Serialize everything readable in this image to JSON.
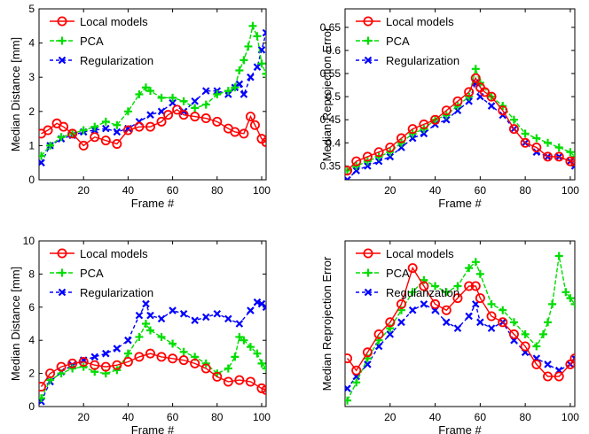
{
  "chart_data": [
    {
      "type": "line",
      "xlabel": "Frame #",
      "ylabel": "Median Distance [mm]",
      "xlim": [
        0,
        102
      ],
      "ylim": [
        0,
        5
      ],
      "xticks": [
        20,
        40,
        60,
        80,
        100
      ],
      "yticks": [
        0,
        1,
        2,
        3,
        4,
        5
      ],
      "legend_position": "top-left",
      "series": [
        {
          "name": "Local models",
          "color": "#ff0000",
          "marker": "o",
          "x": [
            1,
            4,
            8,
            11,
            15,
            20,
            25,
            30,
            35,
            40,
            45,
            50,
            55,
            58,
            62,
            65,
            70,
            75,
            80,
            85,
            88,
            92,
            95,
            97,
            100,
            102
          ],
          "y": [
            1.35,
            1.45,
            1.65,
            1.55,
            1.35,
            1.0,
            1.25,
            1.15,
            1.05,
            1.45,
            1.55,
            1.55,
            1.7,
            1.9,
            2.05,
            1.9,
            1.85,
            1.8,
            1.7,
            1.5,
            1.4,
            1.35,
            1.85,
            1.6,
            1.2,
            1.1
          ]
        },
        {
          "name": "PCA",
          "color": "#00dd00",
          "marker": "+",
          "x": [
            1,
            5,
            10,
            15,
            20,
            25,
            30,
            35,
            40,
            45,
            48,
            50,
            55,
            60,
            65,
            70,
            75,
            80,
            85,
            88,
            90,
            92,
            94,
            96,
            98,
            100,
            102
          ],
          "y": [
            0.7,
            1.0,
            1.25,
            1.35,
            1.45,
            1.55,
            1.7,
            1.6,
            2.0,
            2.5,
            2.7,
            2.6,
            2.4,
            2.4,
            2.3,
            2.1,
            2.2,
            2.5,
            2.6,
            2.7,
            3.2,
            3.5,
            3.9,
            4.5,
            4.2,
            3.4,
            3.1
          ]
        },
        {
          "name": "Regularization",
          "color": "#0000ff",
          "marker": "x",
          "x": [
            1,
            5,
            10,
            15,
            20,
            25,
            30,
            35,
            40,
            45,
            50,
            55,
            60,
            65,
            70,
            75,
            80,
            85,
            88,
            90,
            92,
            95,
            98,
            100,
            102
          ],
          "y": [
            0.5,
            1.0,
            1.2,
            1.3,
            1.4,
            1.45,
            1.5,
            1.4,
            1.5,
            1.7,
            1.9,
            2.0,
            2.25,
            2.0,
            2.3,
            2.6,
            2.6,
            2.5,
            2.7,
            2.8,
            2.5,
            3.0,
            3.3,
            3.8,
            4.3
          ]
        }
      ]
    },
    {
      "type": "line",
      "xlabel": "Frame #",
      "ylabel": "Median Reprojection Error",
      "xlim": [
        0,
        102
      ],
      "ylim": [
        0.32,
        0.69
      ],
      "xticks": [
        20,
        40,
        60,
        80,
        100
      ],
      "yticks": [
        0.35,
        0.4,
        0.45,
        0.5,
        0.55,
        0.6,
        0.65
      ],
      "legend_position": "top-left",
      "series": [
        {
          "name": "Local models",
          "color": "#ff0000",
          "marker": "o",
          "x": [
            1,
            5,
            10,
            15,
            20,
            25,
            30,
            35,
            40,
            45,
            50,
            55,
            58,
            60,
            62,
            65,
            70,
            75,
            80,
            85,
            90,
            95,
            100,
            102
          ],
          "y": [
            0.34,
            0.36,
            0.37,
            0.38,
            0.39,
            0.41,
            0.43,
            0.44,
            0.45,
            0.47,
            0.49,
            0.51,
            0.54,
            0.52,
            0.51,
            0.5,
            0.47,
            0.43,
            0.4,
            0.39,
            0.37,
            0.37,
            0.36,
            0.36
          ]
        },
        {
          "name": "PCA",
          "color": "#00dd00",
          "marker": "+",
          "x": [
            1,
            5,
            10,
            15,
            20,
            25,
            30,
            35,
            40,
            45,
            50,
            55,
            58,
            60,
            65,
            70,
            75,
            80,
            85,
            90,
            95,
            100,
            102
          ],
          "y": [
            0.34,
            0.35,
            0.36,
            0.37,
            0.38,
            0.4,
            0.42,
            0.43,
            0.45,
            0.46,
            0.48,
            0.5,
            0.56,
            0.53,
            0.5,
            0.48,
            0.45,
            0.42,
            0.41,
            0.4,
            0.39,
            0.38,
            0.37
          ]
        },
        {
          "name": "Regularization",
          "color": "#0000ff",
          "marker": "x",
          "x": [
            1,
            5,
            10,
            15,
            20,
            25,
            30,
            35,
            40,
            45,
            50,
            55,
            58,
            60,
            65,
            70,
            75,
            80,
            85,
            90,
            95,
            100,
            102
          ],
          "y": [
            0.32,
            0.34,
            0.35,
            0.36,
            0.37,
            0.39,
            0.41,
            0.42,
            0.44,
            0.45,
            0.47,
            0.49,
            0.53,
            0.5,
            0.48,
            0.46,
            0.43,
            0.4,
            0.38,
            0.37,
            0.37,
            0.36,
            0.35
          ]
        }
      ]
    },
    {
      "type": "line",
      "xlabel": "Frame #",
      "ylabel": "Median Distance [mm]",
      "xlim": [
        0,
        102
      ],
      "ylim": [
        0,
        10
      ],
      "xticks": [
        20,
        40,
        60,
        80,
        100
      ],
      "yticks": [
        0,
        2,
        4,
        6,
        8,
        10
      ],
      "legend_position": "top-left",
      "series": [
        {
          "name": "Local models",
          "color": "#ff0000",
          "marker": "o",
          "x": [
            1,
            5,
            10,
            15,
            20,
            25,
            30,
            35,
            40,
            45,
            50,
            55,
            60,
            65,
            70,
            75,
            80,
            85,
            90,
            95,
            100,
            102
          ],
          "y": [
            1.2,
            2.0,
            2.4,
            2.6,
            2.7,
            2.5,
            2.4,
            2.5,
            2.7,
            3.0,
            3.2,
            3.0,
            2.9,
            2.8,
            2.6,
            2.3,
            1.8,
            1.5,
            1.6,
            1.5,
            1.1,
            1.0
          ]
        },
        {
          "name": "PCA",
          "color": "#00dd00",
          "marker": "+",
          "x": [
            1,
            5,
            10,
            15,
            20,
            25,
            30,
            35,
            40,
            45,
            48,
            50,
            55,
            60,
            65,
            70,
            75,
            80,
            85,
            88,
            90,
            92,
            95,
            98,
            100,
            102
          ],
          "y": [
            0.5,
            1.6,
            2.0,
            2.3,
            2.4,
            2.1,
            2.0,
            2.2,
            3.2,
            4.2,
            5.0,
            4.6,
            4.2,
            3.8,
            3.3,
            3.0,
            2.6,
            2.0,
            2.3,
            3.0,
            4.2,
            4.0,
            3.6,
            3.2,
            2.6,
            2.3
          ]
        },
        {
          "name": "Regularization",
          "color": "#0000ff",
          "marker": "x",
          "x": [
            1,
            5,
            10,
            15,
            20,
            25,
            30,
            35,
            40,
            45,
            48,
            50,
            55,
            60,
            65,
            70,
            75,
            80,
            85,
            90,
            95,
            98,
            100,
            102
          ],
          "y": [
            0.3,
            1.5,
            2.1,
            2.5,
            2.8,
            3.0,
            3.2,
            3.5,
            4.0,
            5.5,
            6.2,
            5.5,
            5.3,
            5.8,
            5.6,
            5.2,
            5.4,
            5.6,
            5.3,
            5.0,
            5.8,
            6.3,
            6.2,
            6.0
          ]
        }
      ]
    },
    {
      "type": "line",
      "xlabel": "Frame #",
      "ylabel": "Median Reprojection Error",
      "xlim": [
        0,
        102
      ],
      "ylim": [
        0.6,
        3.35
      ],
      "xticks": [
        20,
        40,
        60,
        80,
        100
      ],
      "yticks": [],
      "legend_position": "top-left",
      "series": [
        {
          "name": "Local models",
          "color": "#ff0000",
          "marker": "o",
          "x": [
            1,
            5,
            10,
            15,
            20,
            25,
            30,
            35,
            40,
            45,
            50,
            55,
            58,
            60,
            65,
            70,
            75,
            80,
            85,
            90,
            95,
            100,
            102
          ],
          "y": [
            1.4,
            1.2,
            1.5,
            1.8,
            2.0,
            2.3,
            2.9,
            2.6,
            2.3,
            2.2,
            2.4,
            2.6,
            2.6,
            2.4,
            2.1,
            2.0,
            1.8,
            1.6,
            1.3,
            1.1,
            1.1,
            1.3,
            1.4
          ]
        },
        {
          "name": "PCA",
          "color": "#00dd00",
          "marker": "+",
          "x": [
            1,
            5,
            10,
            15,
            20,
            25,
            30,
            35,
            40,
            45,
            50,
            55,
            58,
            60,
            65,
            70,
            75,
            80,
            85,
            88,
            90,
            92,
            95,
            98,
            100,
            102
          ],
          "y": [
            0.7,
            1.0,
            1.4,
            1.7,
            1.9,
            2.2,
            2.5,
            2.7,
            2.6,
            2.5,
            2.6,
            2.9,
            3.0,
            2.8,
            2.3,
            2.2,
            2.0,
            1.8,
            1.6,
            1.8,
            2.0,
            2.3,
            3.1,
            2.5,
            2.4,
            2.3
          ]
        },
        {
          "name": "Regularization",
          "color": "#0000ff",
          "marker": "x",
          "x": [
            1,
            5,
            10,
            15,
            20,
            25,
            30,
            35,
            40,
            45,
            50,
            55,
            58,
            60,
            65,
            70,
            75,
            80,
            85,
            90,
            95,
            100,
            102
          ],
          "y": [
            0.9,
            1.1,
            1.3,
            1.6,
            1.8,
            2.0,
            2.2,
            2.3,
            2.2,
            2.0,
            1.9,
            2.1,
            2.3,
            2.0,
            1.9,
            2.0,
            1.7,
            1.5,
            1.4,
            1.3,
            1.2,
            1.3,
            1.4
          ]
        }
      ]
    }
  ]
}
